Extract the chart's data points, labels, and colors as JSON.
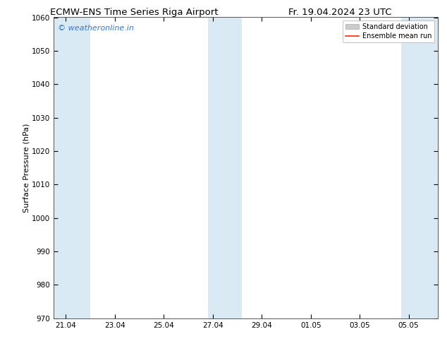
{
  "title_left": "ECMW-ENS Time Series Riga Airport",
  "title_right": "Fr. 19.04.2024 23 UTC",
  "ylabel": "Surface Pressure (hPa)",
  "ylim": [
    970,
    1060
  ],
  "yticks": [
    970,
    980,
    990,
    1000,
    1010,
    1020,
    1030,
    1040,
    1050,
    1060
  ],
  "x_tick_labels": [
    "21.04",
    "23.04",
    "25.04",
    "27.04",
    "29.04",
    "01.05",
    "03.05",
    "05.05"
  ],
  "x_tick_positions": [
    0,
    2,
    4,
    6,
    8,
    10,
    12,
    14
  ],
  "xlim": [
    -0.5,
    15.2
  ],
  "shaded_bands": [
    {
      "x_start": -0.5,
      "x_end": 1.0
    },
    {
      "x_start": 5.8,
      "x_end": 7.2
    },
    {
      "x_start": 13.7,
      "x_end": 15.2
    }
  ],
  "band_color": "#daeaf5",
  "background_color": "#ffffff",
  "watermark_text": "© weatheronline.in",
  "watermark_color": "#3377cc",
  "legend_std_color": "#cccccc",
  "legend_std_edge": "#aaaaaa",
  "legend_mean_color": "#ff2200",
  "title_fontsize": 9.5,
  "axis_label_fontsize": 8,
  "tick_fontsize": 7.5,
  "watermark_fontsize": 8,
  "legend_fontsize": 7
}
